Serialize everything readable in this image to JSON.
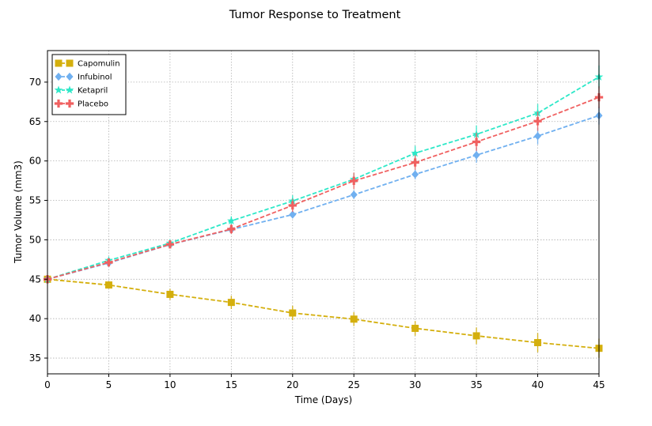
{
  "chart_data": {
    "type": "line",
    "title": "Tumor Response to Treatment",
    "xlabel": "Time (Days)",
    "ylabel": "Tumor Volume (mm3)",
    "x": [
      0,
      5,
      10,
      15,
      20,
      25,
      30,
      35,
      40,
      45
    ],
    "xlim": [
      0,
      45
    ],
    "ylim": [
      33,
      74
    ],
    "xticks": [
      0,
      5,
      10,
      15,
      20,
      25,
      30,
      35,
      40,
      45
    ],
    "yticks": [
      35,
      40,
      45,
      50,
      55,
      60,
      65,
      70
    ],
    "grid": true,
    "legend_position": "top-left",
    "series": [
      {
        "name": "Capomulin",
        "color": "#d4af0d",
        "marker": "square",
        "values": [
          45.0,
          44.27,
          43.08,
          42.06,
          40.72,
          39.94,
          38.77,
          37.82,
          36.96,
          36.24
        ],
        "errors": [
          0.0,
          0.45,
          0.7,
          0.84,
          0.91,
          0.88,
          0.93,
          1.05,
          1.22,
          1.22
        ]
      },
      {
        "name": "Infubinol",
        "color": "#70b0f0",
        "marker": "diamond",
        "values": [
          45.0,
          47.06,
          49.4,
          51.3,
          53.2,
          55.72,
          58.3,
          60.74,
          63.16,
          65.76
        ],
        "errors": [
          0.0,
          0.24,
          0.28,
          0.36,
          0.48,
          0.55,
          0.63,
          0.98,
          1.06,
          1.14
        ]
      },
      {
        "name": "Ketapril",
        "color": "#2de8c8",
        "marker": "star",
        "values": [
          45.0,
          47.39,
          49.58,
          52.4,
          54.92,
          57.68,
          60.99,
          63.37,
          66.07,
          70.66
        ],
        "errors": [
          0.0,
          0.26,
          0.36,
          0.58,
          0.73,
          0.76,
          0.93,
          1.13,
          1.16,
          1.45
        ]
      },
      {
        "name": "Placebo",
        "color": "#f06060",
        "marker": "plus",
        "values": [
          45.0,
          47.13,
          49.42,
          51.36,
          54.36,
          57.48,
          59.81,
          62.42,
          65.05,
          68.08
        ],
        "errors": [
          0.0,
          0.22,
          0.4,
          0.61,
          0.84,
          1.03,
          0.93,
          1.13,
          1.22,
          1.4
        ]
      }
    ]
  }
}
